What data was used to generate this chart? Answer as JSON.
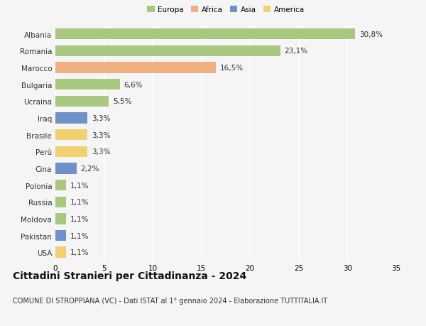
{
  "countries": [
    "Albania",
    "Romania",
    "Marocco",
    "Bulgaria",
    "Ucraina",
    "Iraq",
    "Brasile",
    "Perù",
    "Cina",
    "Polonia",
    "Russia",
    "Moldova",
    "Pakistan",
    "USA"
  ],
  "values": [
    30.8,
    23.1,
    16.5,
    6.6,
    5.5,
    3.3,
    3.3,
    3.3,
    2.2,
    1.1,
    1.1,
    1.1,
    1.1,
    1.1
  ],
  "labels": [
    "30,8%",
    "23,1%",
    "16,5%",
    "6,6%",
    "5,5%",
    "3,3%",
    "3,3%",
    "3,3%",
    "2,2%",
    "1,1%",
    "1,1%",
    "1,1%",
    "1,1%",
    "1,1%"
  ],
  "colors": [
    "#a8c880",
    "#a8c880",
    "#f0b080",
    "#a8c880",
    "#a8c880",
    "#7090c8",
    "#f0d070",
    "#f0d070",
    "#7090c8",
    "#a8c880",
    "#a8c880",
    "#a8c880",
    "#7090c8",
    "#f0d070"
  ],
  "legend_labels": [
    "Europa",
    "Africa",
    "Asia",
    "America"
  ],
  "legend_colors": [
    "#a8c880",
    "#f0b080",
    "#7090c8",
    "#f0d070"
  ],
  "title": "Cittadini Stranieri per Cittadinanza - 2024",
  "subtitle": "COMUNE DI STROPPIANA (VC) - Dati ISTAT al 1° gennaio 2024 - Elaborazione TUTTITALIA.IT",
  "xlim": [
    0,
    35
  ],
  "xticks": [
    0,
    5,
    10,
    15,
    20,
    25,
    30,
    35
  ],
  "bg_color": "#f5f5f5",
  "grid_color": "#ffffff",
  "label_fontsize": 7.5,
  "tick_fontsize": 7.5,
  "title_fontsize": 10,
  "subtitle_fontsize": 7,
  "bar_height": 0.65
}
